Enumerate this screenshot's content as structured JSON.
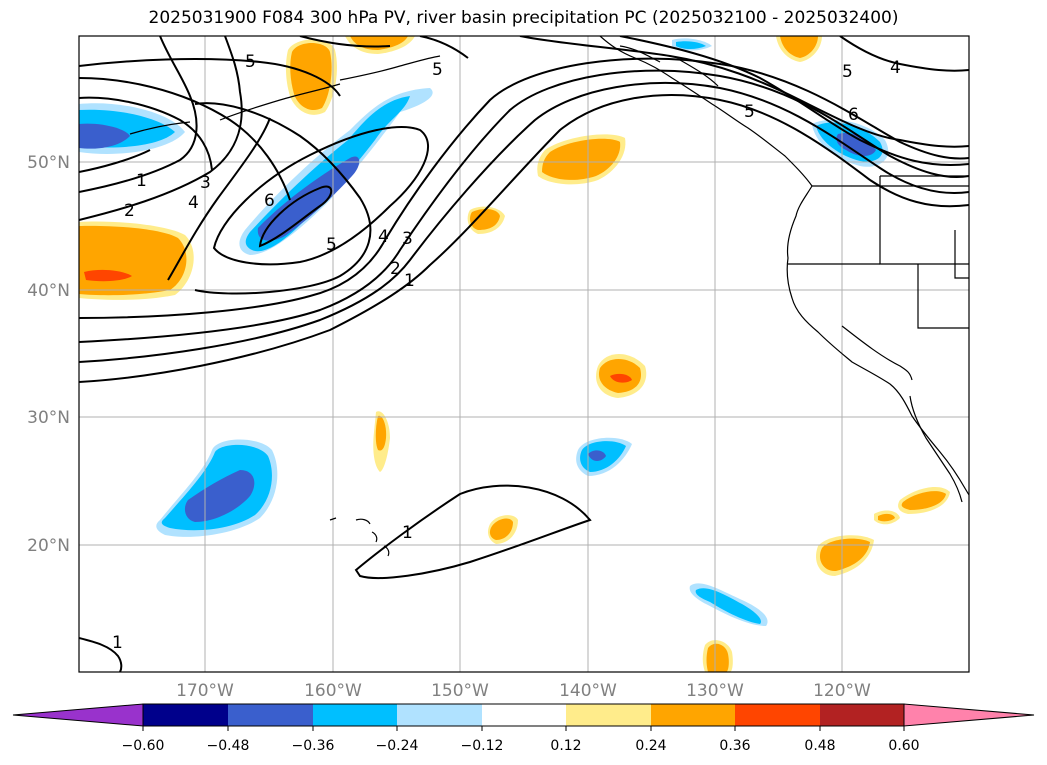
{
  "title": "2025031900 F084 300 hPa PV, river basin precipitation PC (2025032100 - 2025032400)",
  "latitude_labels": [
    "50°N",
    "40°N",
    "30°N",
    "20°N"
  ],
  "longitude_labels": [
    "170°W",
    "160°W",
    "150°W",
    "140°W",
    "130°W",
    "120°W"
  ],
  "colorbar": {
    "ticks": [
      "−0.60",
      "−0.48",
      "−0.36",
      "−0.24",
      "−0.12",
      "0.12",
      "0.24",
      "0.36",
      "0.48",
      "0.60"
    ],
    "colors": [
      "#9932cc",
      "#00008b",
      "#3a5fcd",
      "#00bfff",
      "#b0e2ff",
      "#ffffff",
      "#ffec8b",
      "#ffa500",
      "#ff4500",
      "#b22222",
      "#ff82ab"
    ]
  },
  "contour_labels": [
    "5",
    "5",
    "5",
    "5",
    "4",
    "6",
    "1",
    "2",
    "3",
    "4",
    "6",
    "5",
    "4",
    "3",
    "2",
    "1",
    "1",
    "1"
  ],
  "icons": [
    "coastline-map",
    "pv-contours",
    "precip-pc-shading"
  ]
}
